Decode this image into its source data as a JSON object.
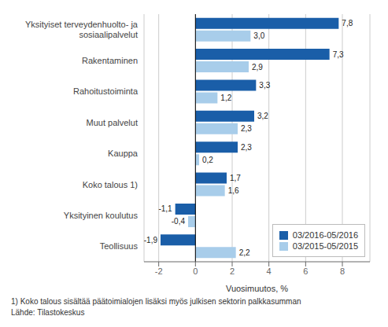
{
  "chart_data": {
    "type": "bar",
    "orientation": "horizontal",
    "categories": [
      "Teollisuus",
      "Yksityinen koulutus",
      "Koko talous 1)",
      "Kauppa",
      "Muut palvelut",
      "Rahoitustoiminta",
      "Rakentaminen",
      "Yksityiset terveydenhuolto- ja\nsosiaalipalvelut"
    ],
    "series": [
      {
        "name": "03/2016-05/2016",
        "color": "#1A5EA8",
        "values": [
          -1.9,
          -1.1,
          1.7,
          2.3,
          3.2,
          3.3,
          7.3,
          7.8
        ],
        "value_labels": [
          "-1,9",
          "-1,1",
          "1,7",
          "2,3",
          "3,2",
          "3,3",
          "7,3",
          "7,8"
        ]
      },
      {
        "name": "03/2015-05/2015",
        "color": "#A8CDEA",
        "values": [
          2.2,
          -0.4,
          1.6,
          0.2,
          2.3,
          1.2,
          2.9,
          3.0
        ],
        "value_labels": [
          "2,2",
          "-0,4",
          "1,6",
          "0,2",
          "2,3",
          "1,2",
          "2,9",
          "3,0"
        ]
      }
    ],
    "xlabel": "Vuosimuutos, %",
    "xlim": [
      -2.8,
      9.5
    ],
    "xticks": [
      -2,
      0,
      2,
      4,
      6,
      8
    ],
    "grid": true,
    "legend": "lower right",
    "data_labels": true,
    "annotations": [
      "1) Koko talous sisältää päätoimialojen lisäksi myös julkisen sektorin palkkasumman",
      "Lähde: Tilastokeskus"
    ]
  }
}
